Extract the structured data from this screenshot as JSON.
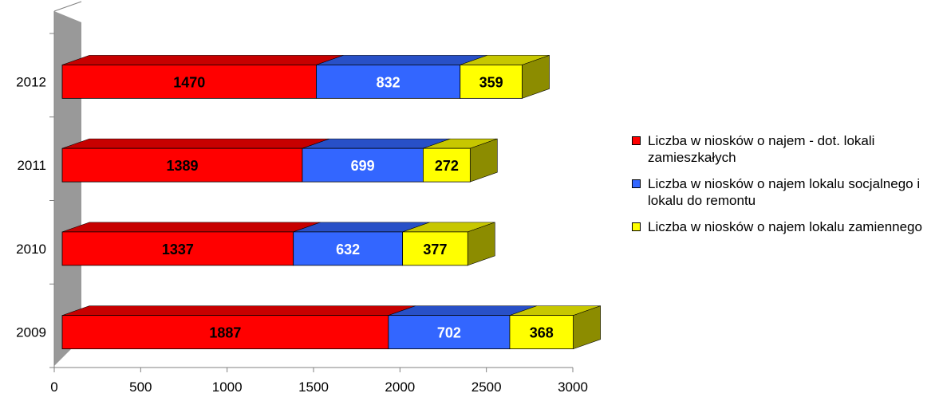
{
  "chart_data": {
    "type": "bar",
    "orientation": "horizontal",
    "stacked": true,
    "three_d": true,
    "categories": [
      "2012",
      "2011",
      "2010",
      "2009"
    ],
    "series": [
      {
        "name": "Liczba w niosków  o najem - dot. lokali zamieszkałych",
        "color": "#ff0000",
        "label_color": "#000000",
        "values": [
          1470,
          1389,
          1337,
          1887
        ]
      },
      {
        "name": "Liczba w niosków  o najem lokalu socjalnego i lokalu do remontu",
        "color": "#3366ff",
        "label_color": "#ffffff",
        "values": [
          832,
          699,
          632,
          702
        ]
      },
      {
        "name": "Liczba w niosków  o najem lokalu zamiennego",
        "color": "#ffff00",
        "label_color": "#000000",
        "values": [
          359,
          272,
          377,
          368
        ]
      }
    ],
    "x_ticks": [
      0,
      500,
      1000,
      1500,
      2000,
      2500,
      3000
    ],
    "xlim": [
      0,
      3000
    ],
    "title": "",
    "xlabel": "",
    "ylabel": "",
    "grid": false,
    "legend_position": "right",
    "wall_color": "#999999"
  },
  "legend": {
    "items": [
      {
        "name": "Liczba w niosków  o najem - dot. lokali zamieszkałych",
        "color": "#ff0000"
      },
      {
        "name": "Liczba w niosków  o najem lokalu socjalnego i lokalu do remontu",
        "color": "#3366ff"
      },
      {
        "name": "Liczba w niosków  o najem lokalu zamiennego",
        "color": "#ffff00"
      }
    ]
  }
}
